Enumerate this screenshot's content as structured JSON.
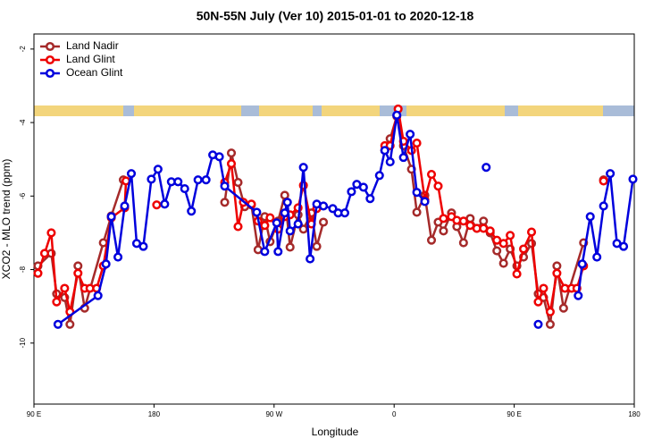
{
  "chart_data": {
    "type": "line",
    "title": "50N-55N July (Ver 10)   2015-01-01 to 2020-12-18",
    "x_label": "Longitude",
    "y_label": "XCO2 - MLO trend (ppm)",
    "xlim": [
      90,
      540
    ],
    "xticks": [
      {
        "value": 90,
        "label": "90 E"
      },
      180,
      {
        "value": 270,
        "label": "90 W"
      },
      {
        "value": 360,
        "label": "0"
      },
      {
        "value": 450,
        "label": "90 E"
      },
      180
    ],
    "ylim": [
      -11.66,
      -1.59
    ],
    "yticks": [
      -2,
      -4,
      -6,
      -8,
      -10
    ],
    "legend": "upper left",
    "series": [
      {
        "name": "Land Nadir",
        "color": "#a52a2a",
        "x": [
          93,
          103,
          107,
          113,
          117,
          123,
          128,
          142,
          148,
          157,
          null,
          233,
          238,
          243,
          248,
          253,
          258,
          263,
          267,
          273,
          278,
          282,
          288,
          292,
          298,
          302,
          307,
          null,
          353,
          357,
          362,
          367,
          373,
          377,
          383,
          388,
          393,
          397,
          403,
          407,
          412,
          417,
          422,
          427,
          432,
          437,
          442,
          447,
          452,
          457,
          463,
          468,
          472,
          477,
          482,
          487,
          502,
          null,
          517
        ],
        "values": [
          -7.9,
          -7.56,
          -8.66,
          -8.76,
          -9.49,
          -7.9,
          -9.05,
          -7.27,
          -6.54,
          -5.56,
          null,
          -6.17,
          -4.83,
          -5.63,
          -6.29,
          -6.24,
          -7.46,
          -6.56,
          -7.24,
          -6.68,
          -5.98,
          -7.39,
          -6.51,
          -6.9,
          -6.46,
          -7.37,
          -6.71,
          null,
          -4.76,
          -4.44,
          -3.83,
          -4.63,
          -5.27,
          -6.44,
          -5.98,
          -7.2,
          -6.71,
          -6.95,
          -6.46,
          -6.83,
          -7.27,
          -6.61,
          -6.88,
          -6.68,
          -7.0,
          -7.49,
          -7.83,
          -7.44,
          -7.9,
          -7.66,
          -7.29,
          -8.66,
          -8.76,
          -9.49,
          -7.9,
          -9.05,
          -7.27,
          null,
          -5.56
        ]
      },
      {
        "name": "Land Glint",
        "color": "#ee0000",
        "x": [
          93,
          98,
          103,
          107,
          113,
          117,
          123,
          128,
          132,
          137,
          142,
          148,
          158,
          159,
          null,
          182,
          null,
          233,
          238,
          243,
          247,
          253,
          258,
          263,
          267,
          273,
          278,
          282,
          288,
          292,
          298,
          302,
          null,
          353,
          357,
          363,
          367,
          373,
          377,
          383,
          388,
          393,
          397,
          403,
          407,
          412,
          417,
          422,
          427,
          432,
          437,
          442,
          447,
          452,
          457,
          463,
          468,
          472,
          477,
          482,
          488,
          493,
          497,
          502,
          null,
          517
        ],
        "values": [
          -8.1,
          -7.56,
          -7.0,
          -8.88,
          -8.51,
          -9.15,
          -8.1,
          -8.51,
          -8.51,
          -8.51,
          -7.9,
          -6.59,
          -6.32,
          -5.59,
          null,
          -6.24,
          null,
          -5.63,
          -5.12,
          -6.83,
          -6.17,
          -6.22,
          -6.68,
          -6.8,
          -6.59,
          -6.9,
          -6.56,
          -6.51,
          -6.32,
          -5.71,
          -6.76,
          -6.34,
          null,
          -4.63,
          -4.63,
          -3.63,
          -4.51,
          -4.76,
          -4.56,
          -6.1,
          -5.41,
          -5.73,
          -6.61,
          -6.56,
          -6.66,
          -6.68,
          -6.8,
          -6.88,
          -6.88,
          -6.95,
          -7.2,
          -7.29,
          -7.07,
          -8.12,
          -7.44,
          -6.98,
          -8.88,
          -8.51,
          -9.15,
          -8.1,
          -8.51,
          -8.51,
          -8.51,
          -7.9,
          null,
          -5.59
        ]
      },
      {
        "name": "Ocean Glint",
        "color": "#0000dd",
        "x": [
          108,
          138,
          144,
          148,
          153,
          158,
          163,
          167,
          172,
          178,
          183,
          188,
          193,
          198,
          203,
          208,
          213,
          219,
          224,
          229,
          233,
          257,
          263,
          272,
          273,
          278,
          280,
          282,
          288,
          292,
          297,
          302,
          307,
          314,
          318,
          323,
          328,
          332,
          337,
          342,
          349,
          353,
          357,
          362,
          367,
          372,
          377,
          383,
          null,
          429,
          null,
          468,
          null,
          498,
          501,
          507,
          512,
          517,
          522,
          527,
          532,
          539
        ],
        "values": [
          -9.49,
          -8.71,
          -7.85,
          -6.56,
          -7.66,
          -6.27,
          -5.39,
          -7.29,
          -7.37,
          -5.54,
          -5.27,
          -6.22,
          -5.61,
          -5.61,
          -5.8,
          -6.41,
          -5.56,
          -5.56,
          -4.88,
          -4.93,
          -5.73,
          -6.44,
          -7.51,
          -6.73,
          -7.51,
          -6.46,
          -6.17,
          -6.95,
          -6.76,
          -5.22,
          -7.71,
          -6.22,
          -6.27,
          -6.34,
          -6.46,
          -6.46,
          -5.88,
          -5.68,
          -5.76,
          -6.07,
          -5.44,
          -4.76,
          -5.07,
          -3.8,
          -4.95,
          -4.32,
          -5.9,
          -6.15,
          null,
          -5.22,
          null,
          -9.49,
          null,
          -8.71,
          -7.85,
          -6.56,
          -7.66,
          -6.27,
          -5.39,
          -7.29,
          -7.37,
          -5.54
        ]
      }
    ]
  }
}
